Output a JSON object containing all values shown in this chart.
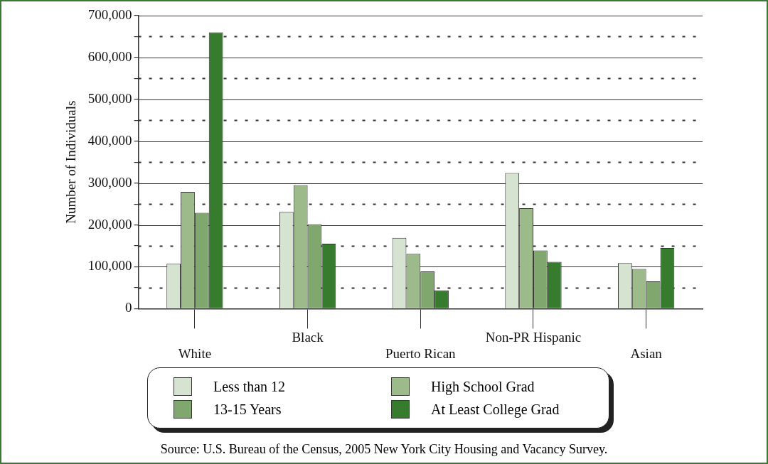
{
  "chart_data": {
    "type": "bar",
    "ylabel": "Number of Individuals",
    "categories": [
      "White",
      "Black",
      "Puerto Rican",
      "Non-PR Hispanic",
      "Asian"
    ],
    "series": [
      {
        "name": "Less than 12",
        "color": "#d6e3d0",
        "values": [
          107000,
          231000,
          169000,
          324000,
          109000
        ]
      },
      {
        "name": "High School Grad",
        "color": "#9dba8a",
        "values": [
          279000,
          295000,
          131000,
          240000,
          95000
        ]
      },
      {
        "name": "13-15 Years",
        "color": "#80a76d",
        "values": [
          229000,
          202000,
          89000,
          139000,
          65000
        ]
      },
      {
        "name": "At Least College Grad",
        "color": "#377c2e",
        "values": [
          660000,
          155000,
          44000,
          112000,
          145000
        ]
      }
    ],
    "ylim": [
      0,
      700000
    ],
    "yticks": [
      0,
      {
        "value": 50000,
        "label": null
      },
      {
        "value": 100000,
        "label": "100,000"
      },
      {
        "value": 150000,
        "label": null
      },
      {
        "value": 200000,
        "label": "200,000"
      },
      {
        "value": 250000,
        "label": null
      },
      {
        "value": 300000,
        "label": "300,000"
      },
      {
        "value": 350000,
        "label": null
      },
      {
        "value": 400000,
        "label": "400,000"
      },
      {
        "value": 450000,
        "label": null
      },
      {
        "value": 500000,
        "label": "500,000"
      },
      {
        "value": 550000,
        "label": null
      },
      {
        "value": 600000,
        "label": "600,000"
      },
      {
        "value": 650000,
        "label": null
      },
      {
        "value": 700000,
        "label": "700,000"
      }
    ],
    "grid": "y",
    "legend": "bottom",
    "annotations": [
      "Source:  U.S. Bureau of the Census, 2005 New York City Housing and Vacancy Survey."
    ]
  }
}
